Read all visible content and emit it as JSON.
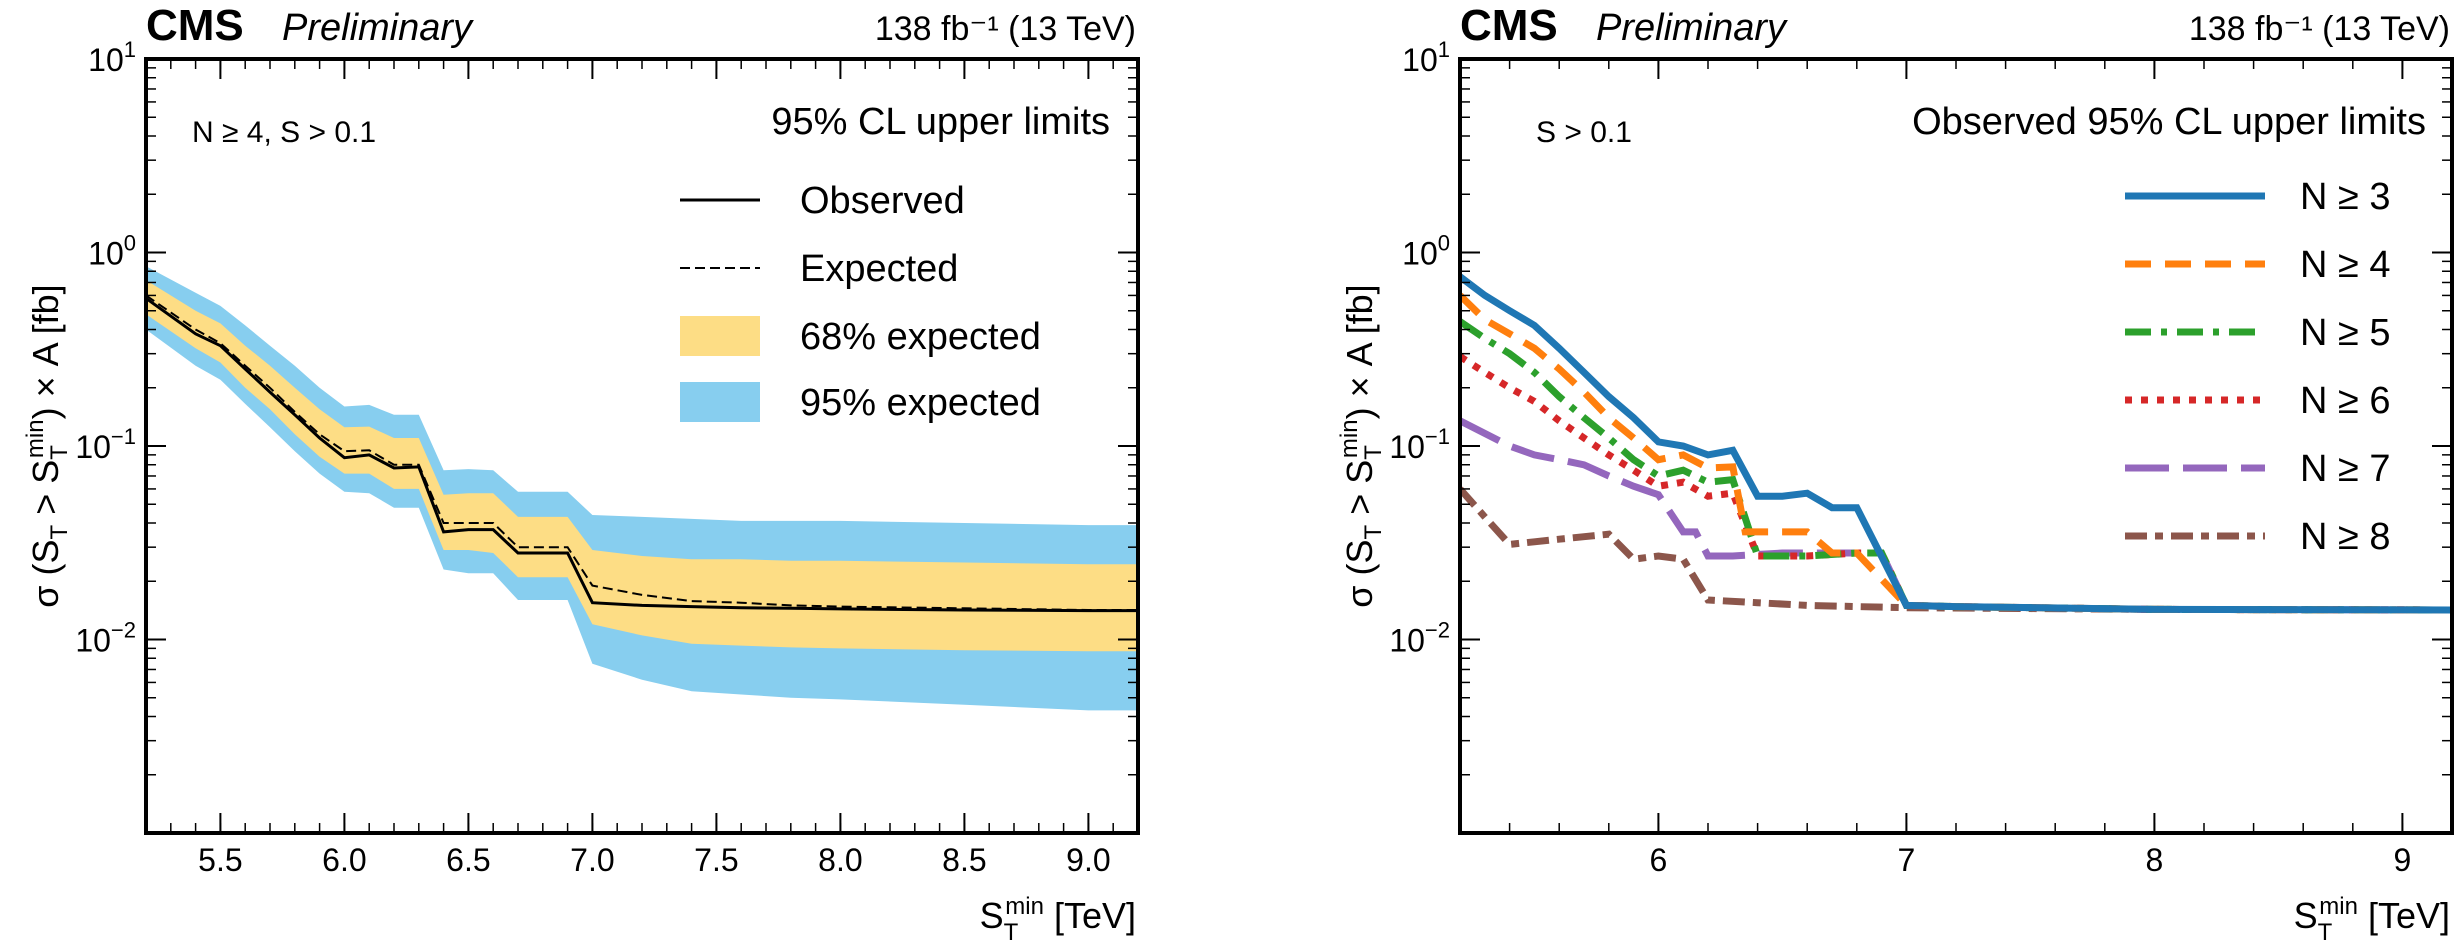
{
  "charts": [
    {
      "cms_label": "CMS",
      "preliminary_label": "Preliminary",
      "lumi_label": "138 fb⁻¹ (13 TeV)",
      "annotation": "N ≥ 4, S > 0.1",
      "legend_title": "95% CL upper limits",
      "xlabel": "S_T^min [TeV]",
      "ylabel": "σ (S_T > S_T^min) × A [fb]"
    },
    {
      "cms_label": "CMS",
      "preliminary_label": "Preliminary",
      "lumi_label": "138 fb⁻¹ (13 TeV)",
      "annotation": "S > 0.1",
      "legend_title": "Observed 95% CL upper limits",
      "xlabel": "S_T^min [TeV]",
      "ylabel": "σ (S_T > S_T^min) × A [fb]"
    }
  ],
  "chart_data": [
    {
      "type": "line",
      "title": "CMS Preliminary",
      "xlabel": "S_T^min [TeV]",
      "ylabel": "σ (S_T > S_T^min) × A [fb]",
      "xlim": [
        5.2,
        9.2
      ],
      "ylim": [
        0.001,
        10
      ],
      "yscale": "log",
      "xticks": [
        "5.5",
        "6.0",
        "6.5",
        "7.0",
        "7.5",
        "8.0",
        "8.5",
        "9.0"
      ],
      "xtick_values": [
        5.5,
        6.0,
        6.5,
        7.0,
        7.5,
        8.0,
        8.5,
        9.0
      ],
      "yticks": [
        "10^-2",
        "10^-1",
        "10^0",
        "10^1"
      ],
      "ytick_values": [
        0.01,
        0.1,
        1,
        10
      ],
      "legend": [
        "Observed",
        "Expected",
        "68% expected",
        "95% expected"
      ],
      "colors": {
        "observed": "#000000",
        "expected": "#000000",
        "band68": "#fddd85",
        "band95": "#87ceef"
      },
      "x": [
        5.2,
        5.4,
        5.5,
        5.6,
        5.7,
        5.8,
        5.9,
        6.0,
        6.1,
        6.2,
        6.3,
        6.4,
        6.5,
        6.6,
        6.7,
        6.8,
        6.9,
        7.0,
        7.2,
        7.4,
        7.6,
        7.8,
        8.0,
        8.5,
        9.0,
        9.2
      ],
      "series": [
        {
          "name": "Observed",
          "values": [
            0.58,
            0.38,
            0.33,
            0.25,
            0.19,
            0.145,
            0.11,
            0.087,
            0.09,
            0.077,
            0.078,
            0.036,
            0.037,
            0.037,
            0.028,
            0.028,
            0.028,
            0.0155,
            0.015,
            0.0148,
            0.0146,
            0.0145,
            0.0144,
            0.0142,
            0.0141,
            0.0141
          ]
        },
        {
          "name": "Expected",
          "values": [
            0.6,
            0.4,
            0.34,
            0.26,
            0.2,
            0.15,
            0.115,
            0.094,
            0.095,
            0.08,
            0.08,
            0.04,
            0.04,
            0.04,
            0.03,
            0.03,
            0.03,
            0.019,
            0.017,
            0.0158,
            0.0155,
            0.015,
            0.0148,
            0.0145,
            0.0142,
            0.0142
          ]
        },
        {
          "name": "68% expected low",
          "values": [
            0.48,
            0.32,
            0.27,
            0.2,
            0.155,
            0.115,
            0.088,
            0.072,
            0.072,
            0.06,
            0.06,
            0.029,
            0.029,
            0.028,
            0.021,
            0.021,
            0.021,
            0.012,
            0.0105,
            0.0095,
            0.0093,
            0.0091,
            0.009,
            0.0088,
            0.0087,
            0.0087
          ]
        },
        {
          "name": "68% expected high",
          "values": [
            0.72,
            0.5,
            0.43,
            0.33,
            0.26,
            0.2,
            0.155,
            0.125,
            0.126,
            0.11,
            0.11,
            0.056,
            0.057,
            0.057,
            0.043,
            0.043,
            0.043,
            0.029,
            0.027,
            0.026,
            0.026,
            0.0255,
            0.0255,
            0.025,
            0.0245,
            0.0245
          ]
        },
        {
          "name": "95% expected low",
          "values": [
            0.4,
            0.26,
            0.22,
            0.165,
            0.125,
            0.094,
            0.072,
            0.058,
            0.057,
            0.048,
            0.048,
            0.023,
            0.022,
            0.022,
            0.016,
            0.016,
            0.016,
            0.0075,
            0.0062,
            0.0054,
            0.0052,
            0.005,
            0.0049,
            0.0046,
            0.0043,
            0.0043
          ]
        },
        {
          "name": "95% expected high",
          "values": [
            0.85,
            0.62,
            0.53,
            0.42,
            0.33,
            0.26,
            0.2,
            0.16,
            0.163,
            0.145,
            0.145,
            0.075,
            0.076,
            0.075,
            0.058,
            0.058,
            0.058,
            0.044,
            0.043,
            0.042,
            0.041,
            0.041,
            0.041,
            0.04,
            0.039,
            0.039
          ]
        }
      ]
    },
    {
      "type": "line",
      "title": "CMS Preliminary",
      "xlabel": "S_T^min [TeV]",
      "ylabel": "σ (S_T > S_T^min) × A [fb]",
      "xlim": [
        5.2,
        9.2
      ],
      "ylim": [
        0.001,
        10
      ],
      "yscale": "log",
      "xticks": [
        "6",
        "7",
        "8",
        "9"
      ],
      "xtick_values": [
        6,
        7,
        8,
        9
      ],
      "yticks": [
        "10^-2",
        "10^-1",
        "10^0",
        "10^1"
      ],
      "ytick_values": [
        0.01,
        0.1,
        1,
        10
      ],
      "legend": [
        "N ≥ 3",
        "N ≥ 4",
        "N ≥ 5",
        "N ≥ 6",
        "N ≥ 7",
        "N ≥ 8"
      ],
      "series": [
        {
          "name": "N ≥ 3",
          "color": "#1f77b4",
          "dash": "solid",
          "x": [
            5.2,
            5.3,
            5.4,
            5.5,
            5.6,
            5.7,
            5.8,
            5.9,
            6.0,
            6.1,
            6.2,
            6.3,
            6.4,
            6.5,
            6.6,
            6.7,
            6.8,
            7.0,
            7.2,
            8.0,
            9.2
          ],
          "values": [
            0.75,
            0.6,
            0.5,
            0.42,
            0.32,
            0.24,
            0.18,
            0.14,
            0.105,
            0.1,
            0.09,
            0.095,
            0.055,
            0.055,
            0.057,
            0.048,
            0.048,
            0.015,
            0.0148,
            0.0143,
            0.0142
          ]
        },
        {
          "name": "N ≥ 4",
          "color": "#ff7f0e",
          "dash": "dashed",
          "x": [
            5.2,
            5.3,
            5.4,
            5.5,
            5.6,
            5.7,
            5.8,
            5.9,
            6.0,
            6.1,
            6.2,
            6.3,
            6.35,
            6.4,
            6.6,
            6.7,
            6.8,
            7.0,
            7.2,
            8.0,
            9.2
          ],
          "values": [
            0.6,
            0.45,
            0.38,
            0.32,
            0.25,
            0.19,
            0.14,
            0.11,
            0.085,
            0.09,
            0.077,
            0.078,
            0.036,
            0.036,
            0.036,
            0.028,
            0.028,
            0.015,
            0.0148,
            0.0143,
            0.0142
          ]
        },
        {
          "name": "N ≥ 5",
          "color": "#2ca02c",
          "dash": "dashdot",
          "x": [
            5.2,
            5.3,
            5.4,
            5.5,
            5.6,
            5.7,
            5.8,
            5.9,
            6.0,
            6.1,
            6.2,
            6.3,
            6.4,
            6.6,
            6.8,
            6.9,
            7.0,
            7.2,
            8.0,
            9.2
          ],
          "values": [
            0.44,
            0.36,
            0.3,
            0.24,
            0.18,
            0.14,
            0.11,
            0.085,
            0.07,
            0.075,
            0.065,
            0.067,
            0.027,
            0.027,
            0.028,
            0.028,
            0.015,
            0.0148,
            0.0143,
            0.0142
          ]
        },
        {
          "name": "N ≥ 6",
          "color": "#d62728",
          "dash": "dotted",
          "x": [
            5.2,
            5.3,
            5.4,
            5.5,
            5.6,
            5.7,
            5.8,
            5.9,
            6.0,
            6.1,
            6.2,
            6.3,
            6.4,
            6.6,
            6.8,
            6.9,
            7.0,
            7.2,
            8.0,
            9.2
          ],
          "values": [
            0.29,
            0.24,
            0.2,
            0.17,
            0.135,
            0.11,
            0.09,
            0.075,
            0.062,
            0.065,
            0.055,
            0.057,
            0.027,
            0.027,
            0.028,
            0.028,
            0.015,
            0.0148,
            0.0143,
            0.0142
          ]
        },
        {
          "name": "N ≥ 7",
          "color": "#9467bd",
          "dash": "longdash",
          "x": [
            5.2,
            5.4,
            5.5,
            5.6,
            5.7,
            5.8,
            5.9,
            6.0,
            6.1,
            6.15,
            6.2,
            6.3,
            6.5,
            6.8,
            6.9,
            7.0,
            7.2,
            8.0,
            9.2
          ],
          "values": [
            0.135,
            0.1,
            0.09,
            0.085,
            0.08,
            0.07,
            0.062,
            0.056,
            0.036,
            0.036,
            0.027,
            0.027,
            0.028,
            0.028,
            0.028,
            0.015,
            0.0148,
            0.0143,
            0.0142
          ]
        },
        {
          "name": "N ≥ 8",
          "color": "#8c564b",
          "dash": "dashdotdense",
          "x": [
            5.2,
            5.3,
            5.4,
            5.5,
            5.6,
            5.7,
            5.8,
            5.9,
            6.0,
            6.1,
            6.2,
            6.4,
            6.6,
            6.8,
            7.0,
            8.0,
            9.2
          ],
          "values": [
            0.06,
            0.043,
            0.031,
            0.032,
            0.033,
            0.034,
            0.035,
            0.026,
            0.027,
            0.026,
            0.016,
            0.0155,
            0.015,
            0.0148,
            0.0146,
            0.0143,
            0.0142
          ]
        }
      ]
    }
  ]
}
